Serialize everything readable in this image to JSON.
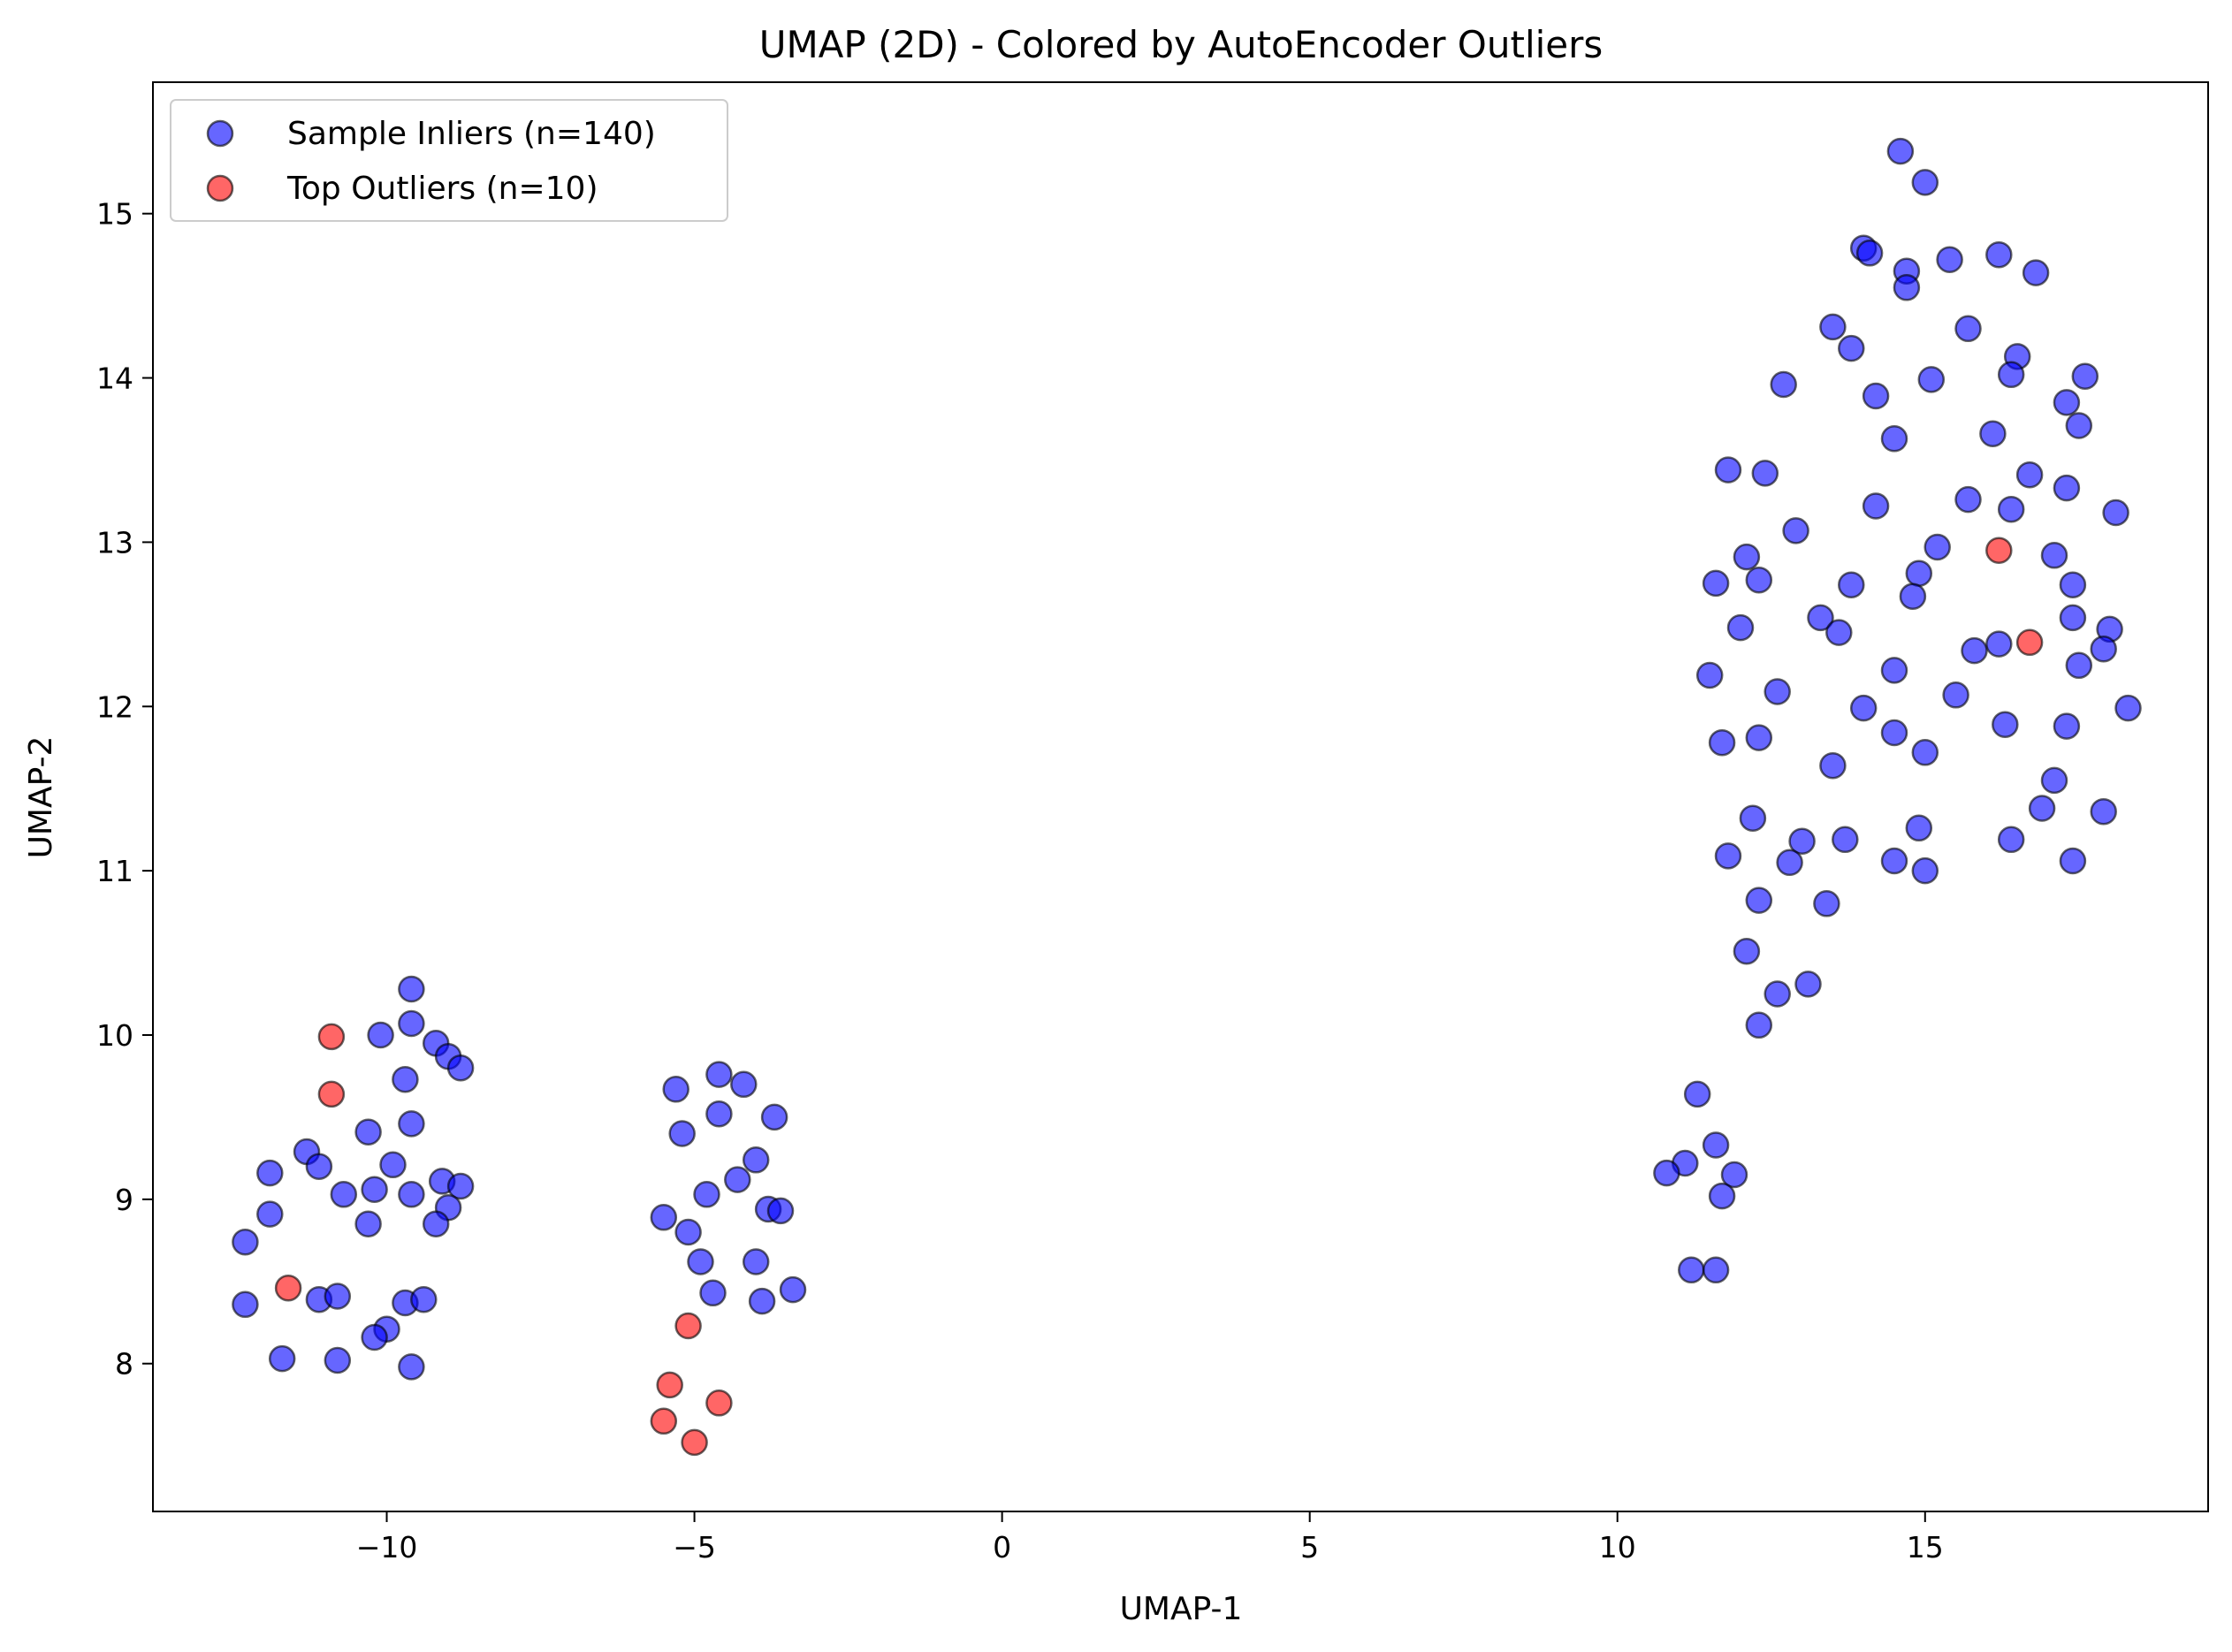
{
  "chart_data": {
    "type": "scatter",
    "title": "UMAP (2D) - Colored by AutoEncoder Outliers",
    "xlabel": "UMAP-1",
    "ylabel": "UMAP-2",
    "xlim": [
      -13.8,
      19.6
    ],
    "ylim": [
      7.1,
      15.8
    ],
    "xticks": [
      -10,
      -5,
      0,
      5,
      10,
      15
    ],
    "xtick_labels": [
      "−10",
      "−5",
      "0",
      "5",
      "10",
      "15"
    ],
    "yticks": [
      8,
      9,
      10,
      11,
      12,
      13,
      14,
      15
    ],
    "ytick_labels": [
      "8",
      "9",
      "10",
      "11",
      "12",
      "13",
      "14",
      "15"
    ],
    "grid": false,
    "legend_position": "upper-left",
    "series": [
      {
        "name": "Sample Inliers (n=140)",
        "color": "#0000ff",
        "points": [
          [
            -9.6,
            10.28
          ],
          [
            -10.1,
            10.0
          ],
          [
            -9.6,
            10.07
          ],
          [
            -9.2,
            9.95
          ],
          [
            -9.0,
            9.87
          ],
          [
            -8.8,
            9.8
          ],
          [
            -9.7,
            9.73
          ],
          [
            -9.6,
            9.46
          ],
          [
            -10.3,
            9.41
          ],
          [
            -11.3,
            9.29
          ],
          [
            -11.9,
            9.16
          ],
          [
            -11.1,
            9.2
          ],
          [
            -10.7,
            9.03
          ],
          [
            -10.2,
            9.06
          ],
          [
            -9.9,
            9.21
          ],
          [
            -9.6,
            9.03
          ],
          [
            -9.1,
            9.11
          ],
          [
            -8.8,
            9.08
          ],
          [
            -9.0,
            8.95
          ],
          [
            -9.2,
            8.85
          ],
          [
            -10.3,
            8.85
          ],
          [
            -11.9,
            8.91
          ],
          [
            -12.3,
            8.74
          ],
          [
            -12.3,
            8.36
          ],
          [
            -11.1,
            8.39
          ],
          [
            -10.8,
            8.41
          ],
          [
            -9.7,
            8.37
          ],
          [
            -9.4,
            8.39
          ],
          [
            -10.0,
            8.21
          ],
          [
            -10.2,
            8.16
          ],
          [
            -11.7,
            8.03
          ],
          [
            -10.8,
            8.02
          ],
          [
            -9.6,
            7.98
          ],
          [
            -5.3,
            9.67
          ],
          [
            -4.6,
            9.76
          ],
          [
            -4.2,
            9.7
          ],
          [
            -4.6,
            9.52
          ],
          [
            -3.7,
            9.5
          ],
          [
            -5.2,
            9.4
          ],
          [
            -4.0,
            9.24
          ],
          [
            -4.3,
            9.12
          ],
          [
            -4.8,
            9.03
          ],
          [
            -3.8,
            8.94
          ],
          [
            -3.6,
            8.93
          ],
          [
            -5.5,
            8.89
          ],
          [
            -5.1,
            8.8
          ],
          [
            -4.9,
            8.62
          ],
          [
            -4.0,
            8.62
          ],
          [
            -4.7,
            8.43
          ],
          [
            -3.9,
            8.38
          ],
          [
            -3.4,
            8.45
          ],
          [
            11.3,
            9.64
          ],
          [
            11.6,
            9.33
          ],
          [
            11.1,
            9.22
          ],
          [
            10.8,
            9.16
          ],
          [
            11.9,
            9.15
          ],
          [
            11.7,
            9.02
          ],
          [
            11.2,
            8.57
          ],
          [
            11.6,
            8.57
          ],
          [
            14.6,
            15.38
          ],
          [
            15.0,
            15.19
          ],
          [
            14.0,
            14.79
          ],
          [
            14.1,
            14.76
          ],
          [
            14.7,
            14.65
          ],
          [
            15.4,
            14.72
          ],
          [
            16.2,
            14.75
          ],
          [
            16.8,
            14.64
          ],
          [
            14.7,
            14.55
          ],
          [
            13.5,
            14.31
          ],
          [
            15.7,
            14.3
          ],
          [
            13.8,
            14.18
          ],
          [
            16.5,
            14.13
          ],
          [
            12.7,
            13.96
          ],
          [
            14.2,
            13.89
          ],
          [
            15.1,
            13.99
          ],
          [
            16.4,
            14.02
          ],
          [
            17.6,
            14.01
          ],
          [
            17.3,
            13.85
          ],
          [
            17.5,
            13.71
          ],
          [
            16.1,
            13.66
          ],
          [
            14.5,
            13.63
          ],
          [
            11.8,
            13.44
          ],
          [
            12.4,
            13.42
          ],
          [
            16.7,
            13.41
          ],
          [
            17.3,
            13.33
          ],
          [
            15.7,
            13.26
          ],
          [
            14.2,
            13.22
          ],
          [
            16.4,
            13.2
          ],
          [
            18.1,
            13.18
          ],
          [
            12.9,
            13.07
          ],
          [
            15.2,
            12.97
          ],
          [
            17.1,
            12.92
          ],
          [
            12.1,
            12.91
          ],
          [
            14.9,
            12.81
          ],
          [
            11.6,
            12.75
          ],
          [
            12.3,
            12.77
          ],
          [
            13.8,
            12.74
          ],
          [
            17.4,
            12.74
          ],
          [
            14.8,
            12.67
          ],
          [
            13.3,
            12.54
          ],
          [
            17.4,
            12.54
          ],
          [
            12.0,
            12.48
          ],
          [
            18.0,
            12.47
          ],
          [
            13.6,
            12.45
          ],
          [
            16.2,
            12.38
          ],
          [
            15.8,
            12.34
          ],
          [
            17.9,
            12.35
          ],
          [
            17.5,
            12.25
          ],
          [
            14.5,
            12.22
          ],
          [
            11.5,
            12.19
          ],
          [
            12.6,
            12.09
          ],
          [
            15.5,
            12.07
          ],
          [
            14.0,
            11.99
          ],
          [
            18.3,
            11.99
          ],
          [
            16.3,
            11.89
          ],
          [
            17.3,
            11.88
          ],
          [
            14.5,
            11.84
          ],
          [
            11.7,
            11.78
          ],
          [
            12.3,
            11.81
          ],
          [
            15.0,
            11.72
          ],
          [
            13.5,
            11.64
          ],
          [
            17.1,
            11.55
          ],
          [
            16.9,
            11.38
          ],
          [
            17.9,
            11.36
          ],
          [
            12.2,
            11.32
          ],
          [
            14.9,
            11.26
          ],
          [
            13.0,
            11.18
          ],
          [
            13.7,
            11.19
          ],
          [
            16.4,
            11.19
          ],
          [
            11.8,
            11.09
          ],
          [
            12.8,
            11.05
          ],
          [
            14.5,
            11.06
          ],
          [
            17.4,
            11.06
          ],
          [
            15.0,
            11.0
          ],
          [
            12.3,
            10.82
          ],
          [
            13.4,
            10.8
          ],
          [
            12.1,
            10.51
          ],
          [
            13.1,
            10.31
          ],
          [
            12.6,
            10.25
          ],
          [
            12.3,
            10.06
          ]
        ]
      },
      {
        "name": "Top Outliers (n=10)",
        "color": "#ff0000",
        "points": [
          [
            -10.9,
            9.99
          ],
          [
            -10.9,
            9.64
          ],
          [
            -11.6,
            8.46
          ],
          [
            -5.1,
            8.23
          ],
          [
            -5.4,
            7.87
          ],
          [
            -4.6,
            7.76
          ],
          [
            -5.5,
            7.65
          ],
          [
            -5.0,
            7.52
          ],
          [
            16.2,
            12.95
          ],
          [
            16.7,
            12.39
          ]
        ]
      }
    ]
  }
}
